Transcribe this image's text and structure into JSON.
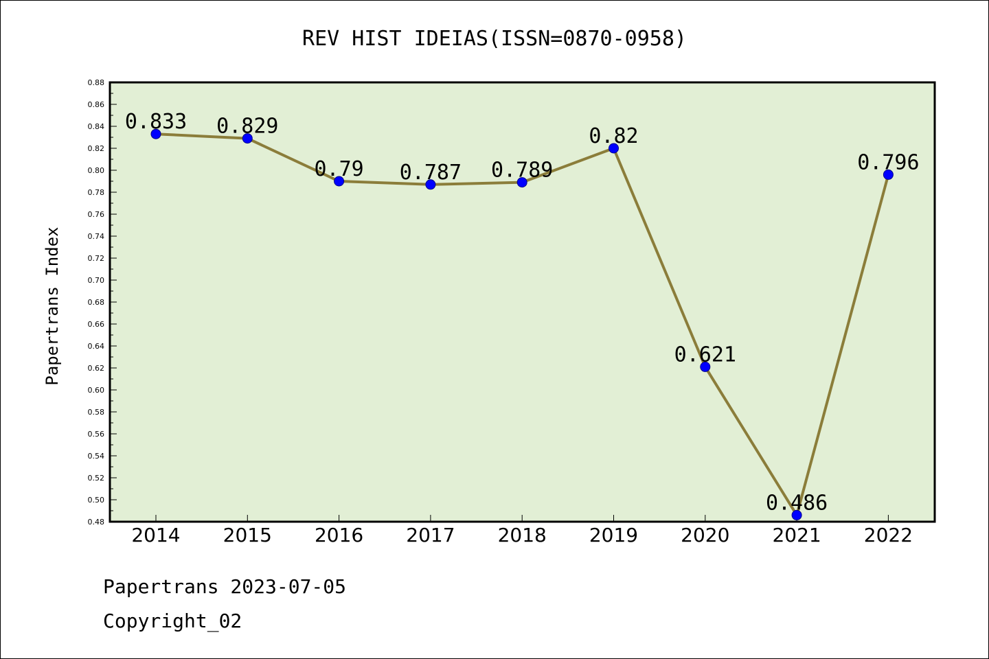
{
  "chart_data": {
    "type": "line",
    "title": "REV HIST IDEIAS(ISSN=0870-0958)",
    "xlabel": "",
    "ylabel": "Papertrans Index",
    "categories": [
      "2014",
      "2015",
      "2016",
      "2017",
      "2018",
      "2019",
      "2020",
      "2021",
      "2022"
    ],
    "series": [
      {
        "values": [
          0.833,
          0.829,
          0.79,
          0.787,
          0.789,
          0.82,
          0.621,
          0.486,
          0.796
        ],
        "labels": [
          "0.833",
          "0.829",
          "0.79",
          "0.787",
          "0.789",
          "0.82",
          "0.621",
          "0.486",
          "0.796"
        ]
      }
    ],
    "ylim": [
      0.48,
      0.88
    ],
    "yticks": [
      "0.48",
      "0.50",
      "0.52",
      "0.54",
      "0.56",
      "0.58",
      "0.60",
      "0.62",
      "0.64",
      "0.66",
      "0.68",
      "0.70",
      "0.72",
      "0.74",
      "0.76",
      "0.78",
      "0.80",
      "0.82",
      "0.84",
      "0.86",
      "0.88"
    ],
    "grid": false,
    "legend": "none",
    "colors": {
      "plot_background": "#e2efd5",
      "line": "#8b7d3a",
      "marker": "#0000ff"
    }
  },
  "footer": {
    "line1": "Papertrans 2023-07-05",
    "line2": "Copyright_02"
  }
}
